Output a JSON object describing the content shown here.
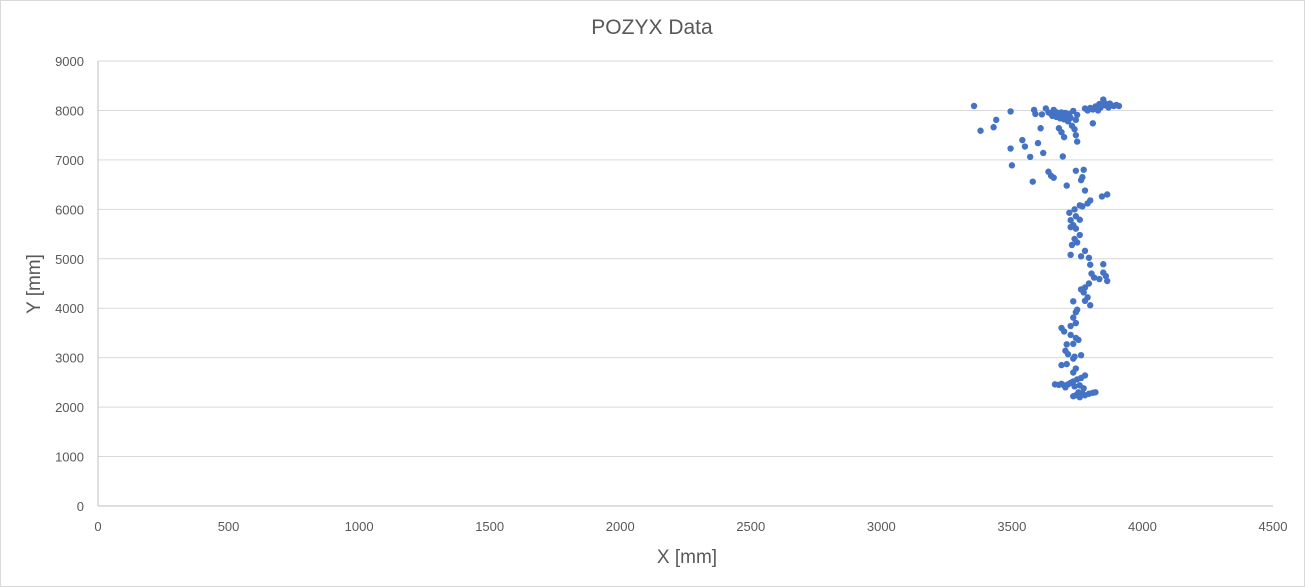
{
  "chart_data": {
    "type": "scatter",
    "title": "POZYX Data",
    "xlabel": "X [mm]",
    "ylabel": "Y [mm]",
    "xlim": [
      0,
      4500
    ],
    "ylim": [
      0,
      9000
    ],
    "x_ticks": [
      "0",
      "500",
      "1000",
      "1500",
      "2000",
      "2500",
      "3000",
      "3500",
      "4000",
      "4500"
    ],
    "y_ticks": [
      "0",
      "1000",
      "2000",
      "3000",
      "4000",
      "5000",
      "6000",
      "7000",
      "8000",
      "9000"
    ],
    "grid": true,
    "legend": "none",
    "color": "#4472c4",
    "series": [
      {
        "points": [
          [
            3355,
            8090
          ],
          [
            3380,
            7590
          ],
          [
            3430,
            7660
          ],
          [
            3440,
            7810
          ],
          [
            3495,
            7980
          ],
          [
            3495,
            7230
          ],
          [
            3500,
            6890
          ],
          [
            3540,
            7400
          ],
          [
            3550,
            7270
          ],
          [
            3570,
            7060
          ],
          [
            3580,
            6560
          ],
          [
            3585,
            8010
          ],
          [
            3590,
            7930
          ],
          [
            3600,
            7340
          ],
          [
            3610,
            7640
          ],
          [
            3620,
            7140
          ],
          [
            3615,
            7920
          ],
          [
            3630,
            8040
          ],
          [
            3640,
            7960
          ],
          [
            3650,
            7930
          ],
          [
            3655,
            7890
          ],
          [
            3660,
            8010
          ],
          [
            3665,
            7980
          ],
          [
            3670,
            7870
          ],
          [
            3675,
            7950
          ],
          [
            3680,
            7920
          ],
          [
            3685,
            7840
          ],
          [
            3690,
            7960
          ],
          [
            3695,
            7900
          ],
          [
            3700,
            7820
          ],
          [
            3705,
            7950
          ],
          [
            3710,
            7880
          ],
          [
            3715,
            7780
          ],
          [
            3720,
            7930
          ],
          [
            3725,
            7850
          ],
          [
            3730,
            7690
          ],
          [
            3735,
            7990
          ],
          [
            3740,
            7620
          ],
          [
            3745,
            7810
          ],
          [
            3750,
            7910
          ],
          [
            3745,
            7500
          ],
          [
            3750,
            7370
          ],
          [
            3680,
            7640
          ],
          [
            3690,
            7560
          ],
          [
            3700,
            7460
          ],
          [
            3695,
            7070
          ],
          [
            3710,
            6480
          ],
          [
            3640,
            6760
          ],
          [
            3650,
            6680
          ],
          [
            3660,
            6640
          ],
          [
            3745,
            6780
          ],
          [
            3775,
            6800
          ],
          [
            3770,
            6650
          ],
          [
            3765,
            6590
          ],
          [
            3780,
            6380
          ],
          [
            3790,
            8000
          ],
          [
            3800,
            8050
          ],
          [
            3810,
            8020
          ],
          [
            3820,
            8080
          ],
          [
            3830,
            8000
          ],
          [
            3835,
            8130
          ],
          [
            3840,
            8060
          ],
          [
            3850,
            8220
          ],
          [
            3855,
            8150
          ],
          [
            3860,
            8100
          ],
          [
            3870,
            8060
          ],
          [
            3875,
            8140
          ],
          [
            3890,
            8090
          ],
          [
            3900,
            8110
          ],
          [
            3910,
            8090
          ],
          [
            3810,
            7740
          ],
          [
            3780,
            8040
          ],
          [
            3845,
            6260
          ],
          [
            3865,
            6300
          ],
          [
            3800,
            6180
          ],
          [
            3790,
            6120
          ],
          [
            3770,
            6060
          ],
          [
            3760,
            6080
          ],
          [
            3740,
            6000
          ],
          [
            3720,
            5930
          ],
          [
            3745,
            5860
          ],
          [
            3725,
            5780
          ],
          [
            3760,
            5790
          ],
          [
            3735,
            5680
          ],
          [
            3745,
            5610
          ],
          [
            3725,
            5640
          ],
          [
            3760,
            5480
          ],
          [
            3740,
            5400
          ],
          [
            3730,
            5280
          ],
          [
            3750,
            5330
          ],
          [
            3780,
            5160
          ],
          [
            3795,
            5020
          ],
          [
            3725,
            5080
          ],
          [
            3765,
            5050
          ],
          [
            3800,
            4880
          ],
          [
            3805,
            4700
          ],
          [
            3850,
            4890
          ],
          [
            3850,
            4720
          ],
          [
            3860,
            4650
          ],
          [
            3865,
            4550
          ],
          [
            3835,
            4590
          ],
          [
            3815,
            4620
          ],
          [
            3795,
            4500
          ],
          [
            3780,
            4420
          ],
          [
            3765,
            4380
          ],
          [
            3775,
            4320
          ],
          [
            3790,
            4220
          ],
          [
            3780,
            4150
          ],
          [
            3800,
            4060
          ],
          [
            3735,
            4140
          ],
          [
            3750,
            3970
          ],
          [
            3745,
            3920
          ],
          [
            3735,
            3810
          ],
          [
            3745,
            3700
          ],
          [
            3725,
            3640
          ],
          [
            3690,
            3600
          ],
          [
            3700,
            3530
          ],
          [
            3725,
            3460
          ],
          [
            3745,
            3400
          ],
          [
            3755,
            3360
          ],
          [
            3735,
            3280
          ],
          [
            3710,
            3270
          ],
          [
            3705,
            3140
          ],
          [
            3715,
            3070
          ],
          [
            3740,
            3020
          ],
          [
            3765,
            3050
          ],
          [
            3735,
            2980
          ],
          [
            3710,
            2870
          ],
          [
            3690,
            2850
          ],
          [
            3745,
            2780
          ],
          [
            3735,
            2700
          ],
          [
            3780,
            2640
          ],
          [
            3765,
            2590
          ],
          [
            3750,
            2560
          ],
          [
            3735,
            2520
          ],
          [
            3725,
            2490
          ],
          [
            3715,
            2460
          ],
          [
            3700,
            2440
          ],
          [
            3690,
            2470
          ],
          [
            3705,
            2400
          ],
          [
            3680,
            2450
          ],
          [
            3665,
            2460
          ],
          [
            3740,
            2420
          ],
          [
            3760,
            2440
          ],
          [
            3775,
            2380
          ],
          [
            3755,
            2300
          ],
          [
            3745,
            2240
          ],
          [
            3760,
            2200
          ],
          [
            3780,
            2240
          ],
          [
            3795,
            2270
          ],
          [
            3810,
            2290
          ],
          [
            3820,
            2300
          ],
          [
            3735,
            2220
          ],
          [
            3770,
            2280
          ]
        ]
      }
    ]
  }
}
